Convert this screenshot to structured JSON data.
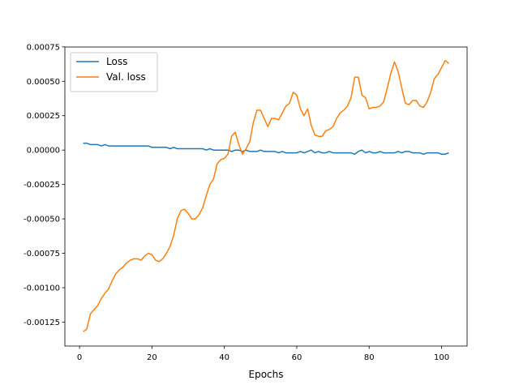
{
  "chart_data": {
    "type": "line",
    "x_label": "Epochs",
    "x": [
      1,
      2,
      3,
      4,
      5,
      6,
      7,
      8,
      9,
      10,
      11,
      12,
      13,
      14,
      15,
      16,
      17,
      18,
      19,
      20,
      21,
      22,
      23,
      24,
      25,
      26,
      27,
      28,
      29,
      30,
      31,
      32,
      33,
      34,
      35,
      36,
      37,
      38,
      39,
      40,
      41,
      42,
      43,
      44,
      45,
      46,
      47,
      48,
      49,
      50,
      51,
      52,
      53,
      54,
      55,
      56,
      57,
      58,
      59,
      60,
      61,
      62,
      63,
      64,
      65,
      66,
      67,
      68,
      69,
      70,
      71,
      72,
      73,
      74,
      75,
      76,
      77,
      78,
      79,
      80,
      81,
      82,
      83,
      84,
      85,
      86,
      87,
      88,
      89,
      90,
      91,
      92,
      93,
      94,
      95,
      96,
      97,
      98,
      99,
      100,
      101,
      102
    ],
    "series": [
      {
        "name": "Loss",
        "color": "#1f77b4",
        "values": [
          5e-05,
          5e-05,
          4e-05,
          4e-05,
          4e-05,
          3e-05,
          4e-05,
          3e-05,
          3e-05,
          3e-05,
          3e-05,
          3e-05,
          3e-05,
          3e-05,
          3e-05,
          3e-05,
          3e-05,
          3e-05,
          3e-05,
          2e-05,
          2e-05,
          2e-05,
          2e-05,
          2e-05,
          1e-05,
          2e-05,
          1e-05,
          1e-05,
          1e-05,
          1e-05,
          1e-05,
          1e-05,
          1e-05,
          1e-05,
          0,
          1e-05,
          0,
          0,
          0,
          0,
          0,
          -1e-05,
          0,
          0,
          -1e-05,
          0,
          -1e-05,
          -1e-05,
          -1e-05,
          0,
          -1e-05,
          -1e-05,
          -1e-05,
          -1e-05,
          -2e-05,
          -1e-05,
          -2e-05,
          -2e-05,
          -2e-05,
          -2e-05,
          -1e-05,
          -2e-05,
          -1e-05,
          0,
          -2e-05,
          -1e-05,
          -2e-05,
          -2e-05,
          -1e-05,
          -2e-05,
          -2e-05,
          -2e-05,
          -2e-05,
          -2e-05,
          -2e-05,
          -3e-05,
          -1e-05,
          0,
          -2e-05,
          -1e-05,
          -2e-05,
          -2e-05,
          -1e-05,
          -2e-05,
          -2e-05,
          -2e-05,
          -2e-05,
          -1e-05,
          -2e-05,
          -1e-05,
          -1e-05,
          -2e-05,
          -2e-05,
          -2e-05,
          -3e-05,
          -2e-05,
          -2e-05,
          -2e-05,
          -2e-05,
          -3e-05,
          -3e-05,
          -2e-05
        ]
      },
      {
        "name": "Val. loss",
        "color": "#ff7f0e",
        "values": [
          -0.00132,
          -0.0013,
          -0.00119,
          -0.00116,
          -0.00113,
          -0.00108,
          -0.00104,
          -0.00101,
          -0.00095,
          -0.0009,
          -0.00087,
          -0.00085,
          -0.00082,
          -0.0008,
          -0.00079,
          -0.00079,
          -0.0008,
          -0.00077,
          -0.00075,
          -0.00076,
          -0.0008,
          -0.00081,
          -0.00079,
          -0.00075,
          -0.0007,
          -0.00062,
          -0.0005,
          -0.00044,
          -0.00043,
          -0.00046,
          -0.0005,
          -0.0005,
          -0.00047,
          -0.00042,
          -0.00033,
          -0.00025,
          -0.00021,
          -0.0001,
          -7e-05,
          -6e-05,
          -3e-05,
          0.0001,
          0.00013,
          4e-05,
          -3e-05,
          1e-05,
          6e-05,
          0.0002,
          0.00029,
          0.00029,
          0.00023,
          0.00017,
          0.00023,
          0.00023,
          0.00022,
          0.00027,
          0.00032,
          0.00034,
          0.00042,
          0.0004,
          0.0003,
          0.00025,
          0.0003,
          0.00018,
          0.00011,
          0.0001,
          0.0001,
          0.00014,
          0.00015,
          0.00017,
          0.00023,
          0.00027,
          0.00029,
          0.00032,
          0.00038,
          0.00053,
          0.00053,
          0.0004,
          0.00038,
          0.0003,
          0.00031,
          0.00031,
          0.00032,
          0.00035,
          0.00045,
          0.00056,
          0.00064,
          0.00057,
          0.00045,
          0.00034,
          0.00033,
          0.00036,
          0.00036,
          0.00032,
          0.00031,
          0.00035,
          0.00042,
          0.00052,
          0.00055,
          0.0006,
          0.00065,
          0.00063
        ]
      }
    ],
    "xlim": [
      -4.05,
      107.05
    ],
    "xticks": [
      0,
      20,
      40,
      60,
      80,
      100
    ],
    "ylim": [
      -0.001424,
      0.000749
    ],
    "yticks": [
      {
        "value": -0.00125,
        "label": "-0.00125"
      },
      {
        "value": -0.001,
        "label": "-0.00100"
      },
      {
        "value": -0.00075,
        "label": "-0.00075"
      },
      {
        "value": -0.0005,
        "label": "-0.00050"
      },
      {
        "value": -0.00025,
        "label": "-0.00025"
      },
      {
        "value": 0,
        "label": "0.00000"
      },
      {
        "value": 0.00025,
        "label": "0.00025"
      },
      {
        "value": 0.0005,
        "label": "0.00050"
      },
      {
        "value": 0.00075,
        "label": "0.00075"
      }
    ],
    "grid": false,
    "legend": "upper-left"
  }
}
